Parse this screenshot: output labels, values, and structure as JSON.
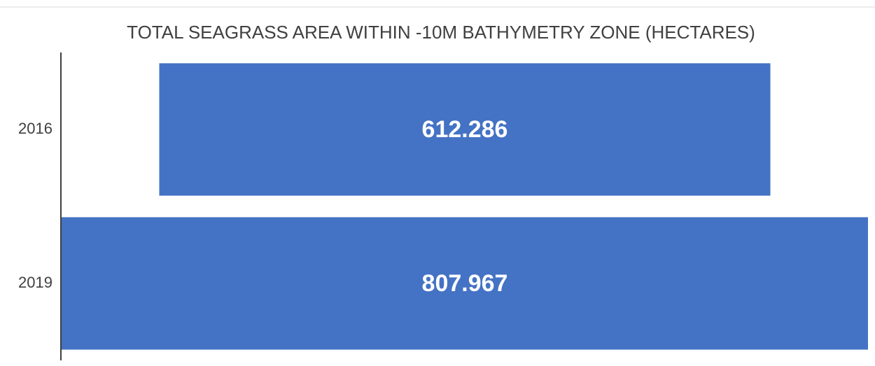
{
  "chart_data": {
    "type": "funnel",
    "title": "TOTAL SEAGRASS AREA WITHIN -10M BATHYMETRY ZONE (HECTARES)",
    "categories": [
      "2016",
      "2019"
    ],
    "values": [
      612.286,
      807.967
    ],
    "color": "#4472c4"
  }
}
